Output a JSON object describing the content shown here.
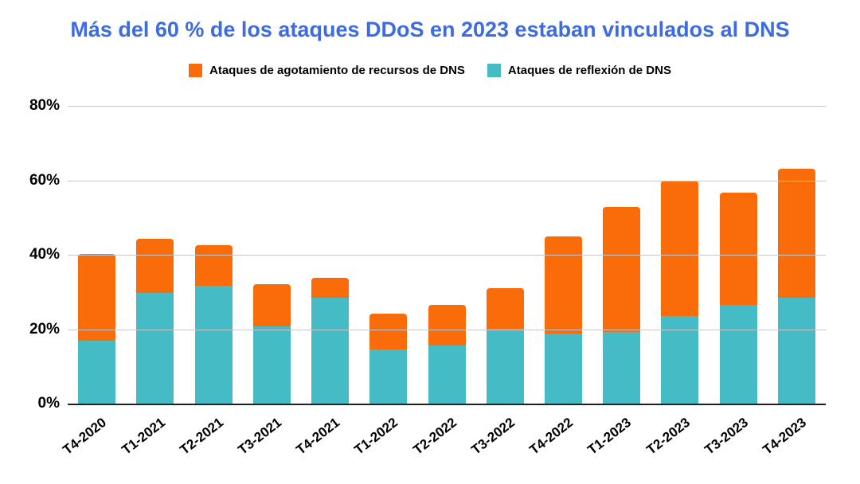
{
  "title": {
    "text": "Más del 60 % de los ataques DDoS en 2023 estaban vinculados al DNS",
    "color": "#3d6ce0"
  },
  "legend": {
    "position": "top",
    "items": [
      {
        "label": "Ataques de agotamiento de recursos de DNS",
        "color": "#fa6b0a"
      },
      {
        "label": "Ataques de reflexión de DNS",
        "color": "#45bcc5"
      }
    ]
  },
  "chart_data": {
    "type": "bar",
    "stacked": true,
    "title": "Más del 60 % de los ataques DDoS en 2023 estaban vinculados al DNS",
    "categories": [
      "T4-2020",
      "T1-2021",
      "T2-2021",
      "T3-2021",
      "T4-2021",
      "T1-2022",
      "T2-2022",
      "T3-2022",
      "T4-2022",
      "T1-2023",
      "T2-2023",
      "T3-2023",
      "T4-2023"
    ],
    "series": [
      {
        "name": "Ataques de agotamiento de recursos de DNS",
        "color": "#fa6b0a",
        "stack_position": "top",
        "values": [
          23.5,
          14.6,
          10.8,
          11.3,
          5.5,
          9.5,
          10.9,
          10.9,
          26.1,
          33.7,
          36.4,
          30.0,
          34.8
        ]
      },
      {
        "name": "Ataques de reflexión de DNS",
        "color": "#45bcc5",
        "stack_position": "bottom",
        "values": [
          16.8,
          29.7,
          31.7,
          20.8,
          28.4,
          14.6,
          15.7,
          20.1,
          18.8,
          19.2,
          23.6,
          26.6,
          28.4
        ]
      }
    ],
    "stacked_totals": [
      40.3,
      44.3,
      42.5,
      32.1,
      33.9,
      24.1,
      26.6,
      31.0,
      44.9,
      52.9,
      60.0,
      56.6,
      63.2
    ],
    "xlabel": "",
    "ylabel": "",
    "y_ticks": [
      "0%",
      "20%",
      "40%",
      "60%",
      "80%"
    ],
    "ylim": [
      0,
      80
    ],
    "grid": true,
    "gridline_color": "#c7c7c7",
    "axis_line_color": "#1f1f1f",
    "legend_position": "top"
  }
}
